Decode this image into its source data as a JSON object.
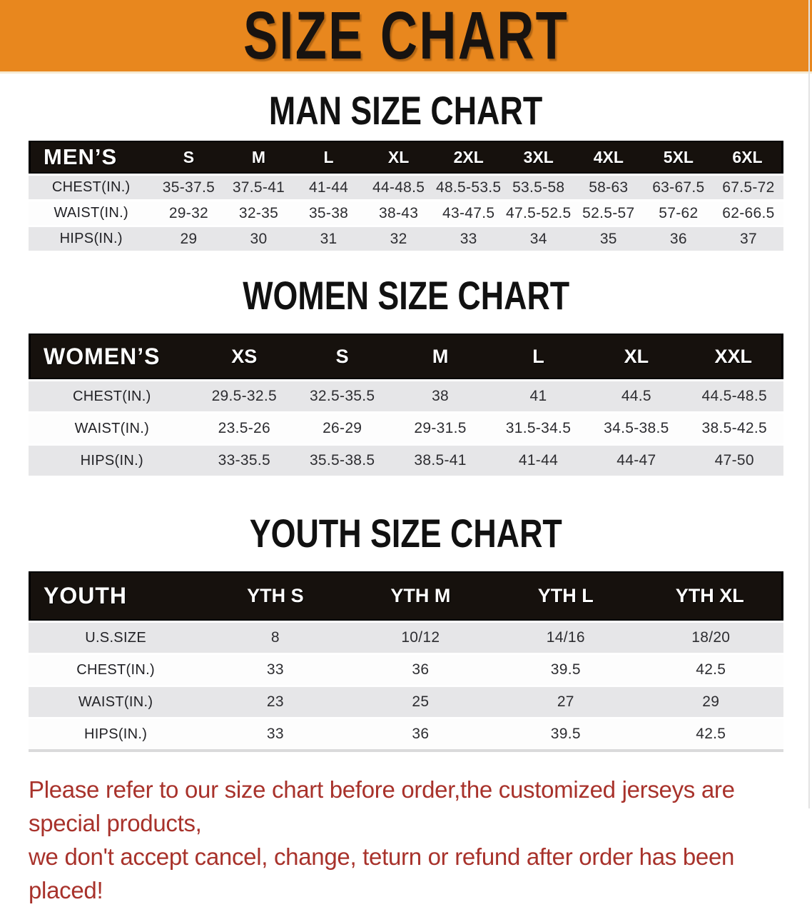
{
  "banner": {
    "title": "SIZE CHART",
    "bg_color": "#e8871e",
    "text_color": "#181310"
  },
  "sections": {
    "men": {
      "heading": "MAN SIZE CHART",
      "table": {
        "label": "MEN’S",
        "sizes": [
          "S",
          "M",
          "L",
          "XL",
          "2XL",
          "3XL",
          "4XL",
          "5XL",
          "6XL"
        ],
        "rows": [
          {
            "label": "CHEST(IN.)",
            "values": [
              "35-37.5",
              "37.5-41",
              "41-44",
              "44-48.5",
              "48.5-53.5",
              "53.5-58",
              "58-63",
              "63-67.5",
              "67.5-72"
            ]
          },
          {
            "label": "WAIST(IN.)",
            "values": [
              "29-32",
              "32-35",
              "35-38",
              "38-43",
              "43-47.5",
              "47.5-52.5",
              "52.5-57",
              "57-62",
              "62-66.5"
            ]
          },
          {
            "label": "HIPS(IN.)",
            "values": [
              "29",
              "30",
              "31",
              "32",
              "33",
              "34",
              "35",
              "36",
              "37"
            ]
          }
        ]
      }
    },
    "women": {
      "heading": "WOMEN SIZE CHART",
      "table": {
        "label": "WOMEN’S",
        "sizes": [
          "XS",
          "S",
          "M",
          "L",
          "XL",
          "XXL"
        ],
        "rows": [
          {
            "label": "CHEST(IN.)",
            "values": [
              "29.5-32.5",
              "32.5-35.5",
              "38",
              "41",
              "44.5",
              "44.5-48.5"
            ]
          },
          {
            "label": "WAIST(IN.)",
            "values": [
              "23.5-26",
              "26-29",
              "29-31.5",
              "31.5-34.5",
              "34.5-38.5",
              "38.5-42.5"
            ]
          },
          {
            "label": "HIPS(IN.)",
            "values": [
              "33-35.5",
              "35.5-38.5",
              "38.5-41",
              "41-44",
              "44-47",
              "47-50"
            ]
          }
        ]
      }
    },
    "youth": {
      "heading": "YOUTH SIZE CHART",
      "table": {
        "label": "YOUTH",
        "sizes": [
          "YTH S",
          "YTH M",
          "YTH L",
          "YTH XL"
        ],
        "rows": [
          {
            "label": "U.S.SIZE",
            "values": [
              "8",
              "10/12",
              "14/16",
              "18/20"
            ]
          },
          {
            "label": "CHEST(IN.)",
            "values": [
              "33",
              "36",
              "39.5",
              "42.5"
            ]
          },
          {
            "label": "WAIST(IN.)",
            "values": [
              "23",
              "25",
              "27",
              "29"
            ]
          },
          {
            "label": "HIPS(IN.)",
            "values": [
              "33",
              "36",
              "39.5",
              "42.5"
            ]
          }
        ]
      }
    }
  },
  "footer": {
    "line1": "Please refer to our size chart before order,the customized jerseys are special products,",
    "line2": "we don't accept cancel, change, teturn or refund after order has been placed!",
    "text_color": "#a8322b"
  },
  "table_colors": {
    "header_bg": "#16110d",
    "header_text": "#ffffff",
    "stripe_gray": "#e6e6e8",
    "stripe_white": "#fdfdfd"
  }
}
